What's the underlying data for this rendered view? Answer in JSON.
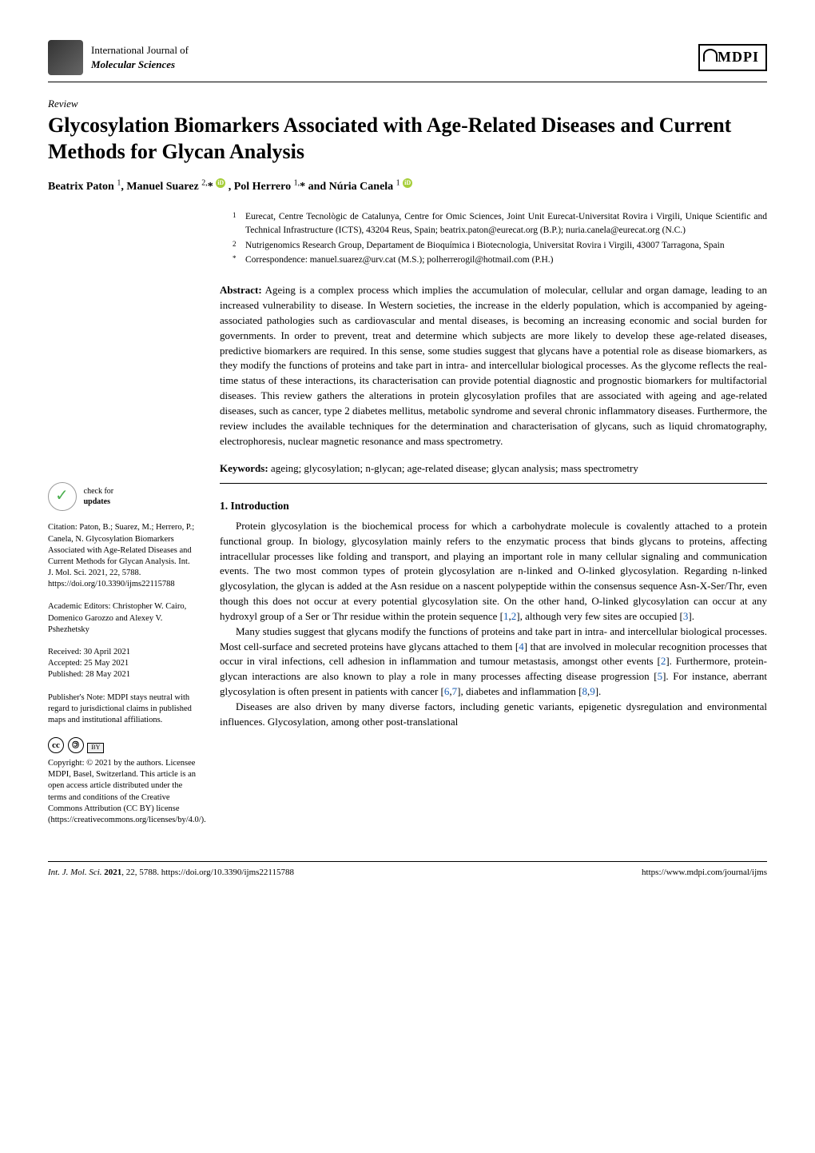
{
  "journal": {
    "sub": "International Journal of",
    "main": "Molecular Sciences"
  },
  "publisher_logo": "MDPI",
  "article_type": "Review",
  "title": "Glycosylation Biomarkers Associated with Age-Related Diseases and Current Methods for Glycan Analysis",
  "authors_line": "Beatrix Paton ¹, Manuel Suarez ²,* , Pol Herrero ¹,* and Núria Canela ¹",
  "affiliations": [
    {
      "num": "1",
      "text": "Eurecat, Centre Tecnològic de Catalunya, Centre for Omic Sciences, Joint Unit Eurecat-Universitat Rovira i Virgili, Unique Scientific and Technical Infrastructure (ICTS), 43204 Reus, Spain; beatrix.paton@eurecat.org (B.P.); nuria.canela@eurecat.org (N.C.)"
    },
    {
      "num": "2",
      "text": "Nutrigenomics Research Group, Departament de Bioquímica i Biotecnologia, Universitat Rovira i Virgili, 43007 Tarragona, Spain"
    },
    {
      "num": "*",
      "text": "Correspondence: manuel.suarez@urv.cat (M.S.); polherrerogil@hotmail.com (P.H.)"
    }
  ],
  "abstract": {
    "label": "Abstract:",
    "text": " Ageing is a complex process which implies the accumulation of molecular, cellular and organ damage, leading to an increased vulnerability to disease. In Western societies, the increase in the elderly population, which is accompanied by ageing-associated pathologies such as cardiovascular and mental diseases, is becoming an increasing economic and social burden for governments. In order to prevent, treat and determine which subjects are more likely to develop these age-related diseases, predictive biomarkers are required. In this sense, some studies suggest that glycans have a potential role as disease biomarkers, as they modify the functions of proteins and take part in intra- and intercellular biological processes. As the glycome reflects the real-time status of these interactions, its characterisation can provide potential diagnostic and prognostic biomarkers for multifactorial diseases. This review gathers the alterations in protein glycosylation profiles that are associated with ageing and age-related diseases, such as cancer, type 2 diabetes mellitus, metabolic syndrome and several chronic inflammatory diseases. Furthermore, the review includes the available techniques for the determination and characterisation of glycans, such as liquid chromatography, electrophoresis, nuclear magnetic resonance and mass spectrometry."
  },
  "keywords": {
    "label": "Keywords:",
    "text": " ageing; glycosylation; n-glycan; age-related disease; glycan analysis; mass spectrometry"
  },
  "section_heading": "1. Introduction",
  "body_p1_a": "Protein glycosylation is the biochemical process for which a carbohydrate molecule is covalently attached to a protein functional group. In biology, glycosylation mainly refers to the enzymatic process that binds glycans to proteins, affecting intracellular processes like folding and transport, and playing an important role in many cellular signaling and communication events. The two most common types of protein glycosylation are n-linked and O-linked glycosylation. Regarding n-linked glycosylation, the glycan is added at the Asn residue on a nascent polypeptide within the consensus sequence Asn-X-Ser/Thr, even though this does not occur at every potential glycosylation site. On the other hand, O-linked glycosylation can occur at any hydroxyl group of a Ser or Thr residue within the protein sequence [",
  "body_p1_ref1": "1",
  "body_p1_b": ",",
  "body_p1_ref2": "2",
  "body_p1_c": "], although very few sites are occupied [",
  "body_p1_ref3": "3",
  "body_p1_d": "].",
  "body_p2_a": "Many studies suggest that glycans modify the functions of proteins and take part in intra- and intercellular biological processes. Most cell-surface and secreted proteins have glycans attached to them [",
  "body_p2_ref1": "4",
  "body_p2_b": "] that are involved in molecular recognition processes that occur in viral infections, cell adhesion in inflammation and tumour metastasis, amongst other events [",
  "body_p2_ref2": "2",
  "body_p2_c": "]. Furthermore, protein-glycan interactions are also known to play a role in many processes affecting disease progression [",
  "body_p2_ref3": "5",
  "body_p2_d": "]. For instance, aberrant glycosylation is often present in patients with cancer [",
  "body_p2_ref4": "6",
  "body_p2_e": ",",
  "body_p2_ref5": "7",
  "body_p2_f": "], diabetes and inflammation [",
  "body_p2_ref6": "8",
  "body_p2_g": ",",
  "body_p2_ref7": "9",
  "body_p2_h": "].",
  "body_p3": "Diseases are also driven by many diverse factors, including genetic variants, epigenetic dysregulation and environmental influences. Glycosylation, among other post-translational",
  "sidebar": {
    "check_label_1": "check for",
    "check_label_2": "updates",
    "citation": "Citation: Paton, B.; Suarez, M.; Herrero, P.; Canela, N. Glycosylation Biomarkers Associated with Age-Related Diseases and Current Methods for Glycan Analysis. Int. J. Mol. Sci. 2021, 22, 5788. https://doi.org/10.3390/ijms22115788",
    "editors": "Academic Editors: Christopher W. Cairo, Domenico Garozzo and Alexey V. Pshezhetsky",
    "received": "Received: 30 April 2021",
    "accepted": "Accepted: 25 May 2021",
    "published": "Published: 28 May 2021",
    "note": "Publisher's Note: MDPI stays neutral with regard to jurisdictional claims in published maps and institutional affiliations.",
    "copyright": "Copyright: © 2021 by the authors. Licensee MDPI, Basel, Switzerland. This article is an open access article distributed under the terms and conditions of the Creative Commons Attribution (CC BY) license (https://creativecommons.org/licenses/by/4.0/)."
  },
  "footer": {
    "left_italic": "Int. J. Mol. Sci. ",
    "left_bold": "2021",
    "left_rest": ", 22, 5788. https://doi.org/10.3390/ijms22115788",
    "right": "https://www.mdpi.com/journal/ijms"
  }
}
